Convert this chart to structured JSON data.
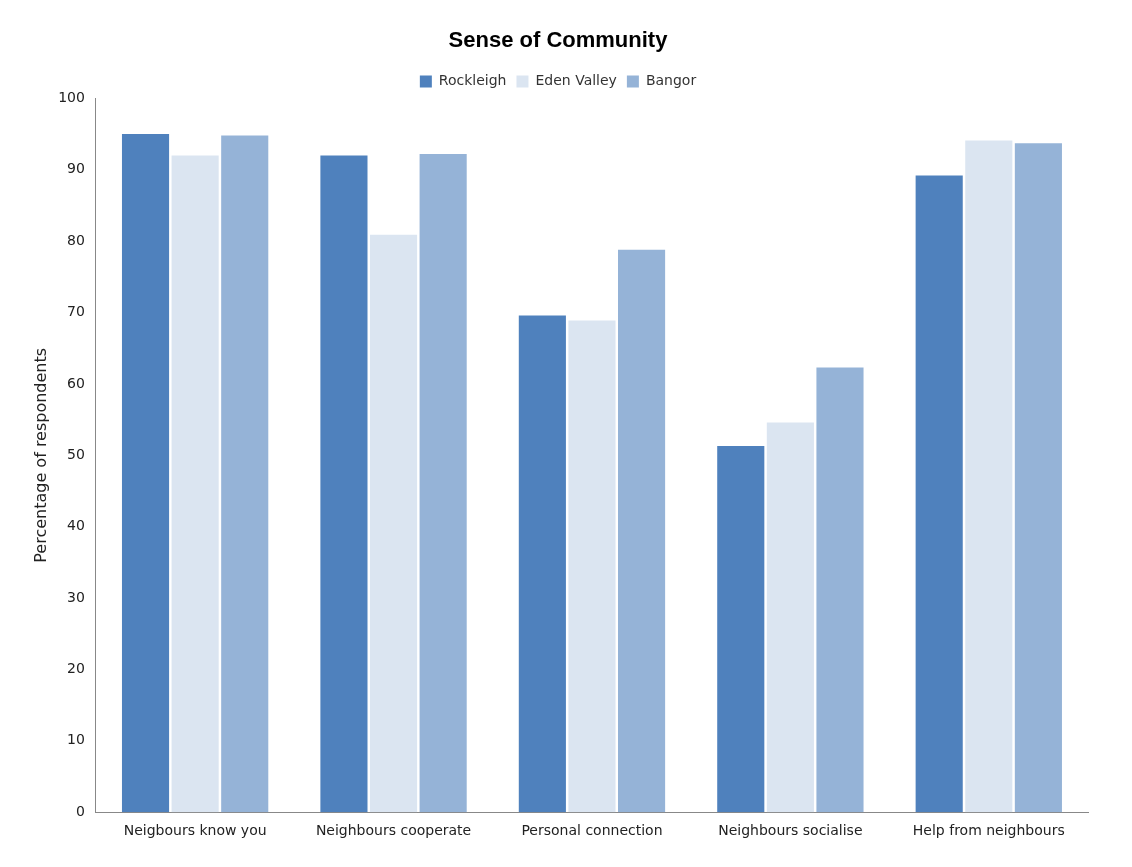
{
  "chart_data": {
    "type": "bar",
    "title": "Sense of Community",
    "ylabel": "Percentage of respondents",
    "categories": [
      "Neigbours know you",
      "Neighbours cooperate",
      "Personal connection",
      "Neighbours socialise",
      "Help from neighbours"
    ],
    "series": [
      {
        "name": "Rockleigh",
        "color": "#4f81bd",
        "values": [
          95,
          92,
          69.6,
          51.3,
          89.2
        ]
      },
      {
        "name": "Eden Valley",
        "color": "#dbe5f1",
        "values": [
          92,
          80.9,
          68.9,
          54.6,
          94.1
        ]
      },
      {
        "name": "Bangor",
        "color": "#95b3d7",
        "values": [
          94.8,
          92.2,
          78.8,
          62.3,
          93.7
        ]
      }
    ],
    "ylim": [
      0,
      100
    ],
    "yticks": [
      0,
      10,
      20,
      30,
      40,
      50,
      60,
      70,
      80,
      90,
      100
    ],
    "grid": false,
    "legend": "top"
  }
}
